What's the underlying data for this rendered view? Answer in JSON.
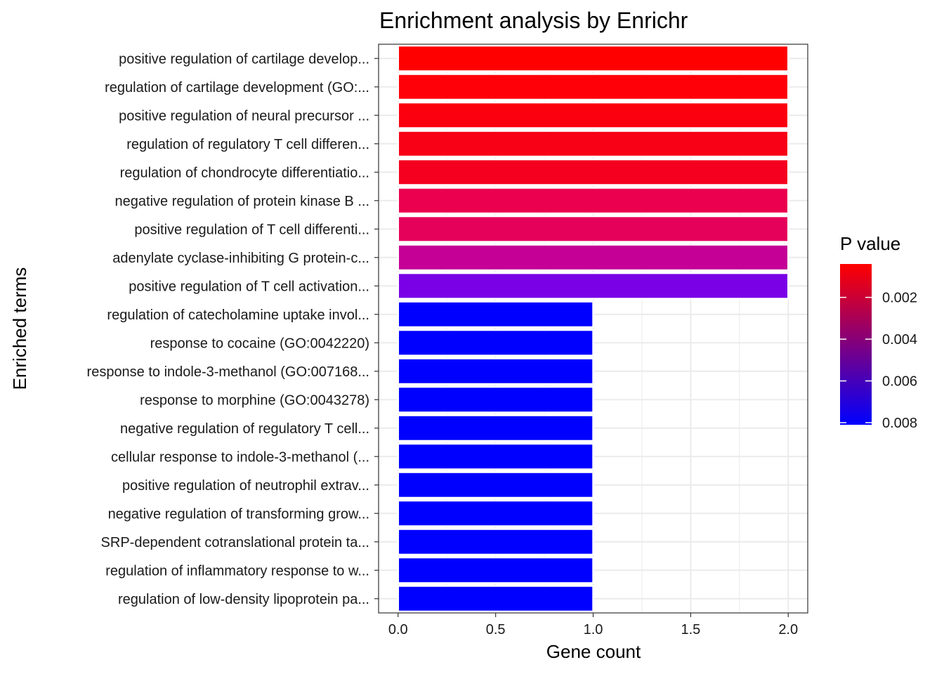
{
  "chart_data": {
    "type": "bar",
    "orientation": "horizontal",
    "title": "Enrichment analysis by Enrichr",
    "xlabel": "Gene count",
    "ylabel": "Enriched terms",
    "xlim": [
      -0.1,
      2.1
    ],
    "xticks": [
      0.0,
      0.5,
      1.0,
      1.5,
      2.0
    ],
    "xtick_labels": [
      "0.0",
      "0.5",
      "1.0",
      "1.5",
      "2.0"
    ],
    "grid": true,
    "legend": {
      "title": "P value",
      "position": "right",
      "type": "colorbar",
      "low_color": "#FF0000",
      "high_color": "#0000FF",
      "range": [
        0.0004,
        0.0081
      ],
      "ticks": [
        0.002,
        0.004,
        0.006,
        0.008
      ],
      "tick_labels": [
        "0.002",
        "0.004",
        "0.006",
        "0.008"
      ]
    },
    "categories": [
      "positive regulation of cartilage develop...",
      "regulation of cartilage development (GO:...",
      "positive regulation of neural precursor ...",
      "regulation of regulatory T cell differen...",
      "regulation of chondrocyte differentiatio...",
      "negative regulation of protein kinase B ...",
      "positive regulation of T cell differenti...",
      "adenylate cyclase-inhibiting G protein-c...",
      "positive regulation of T cell activation...",
      "regulation of catecholamine uptake invol...",
      "response to cocaine (GO:0042220)",
      "response to indole-3-methanol (GO:007168...",
      "response to morphine (GO:0043278)",
      "negative regulation of regulatory T cell...",
      "cellular response to indole-3-methanol (...",
      "positive regulation of neutrophil extrav...",
      "negative regulation of transforming grow...",
      "SRP-dependent cotranslational protein ta...",
      "regulation of inflammatory response to w...",
      "regulation of low-density lipoprotein pa..."
    ],
    "values": [
      2,
      2,
      2,
      2,
      2,
      2,
      2,
      2,
      2,
      1,
      1,
      1,
      1,
      1,
      1,
      1,
      1,
      1,
      1,
      1
    ],
    "p_values": [
      0.0004,
      0.0008,
      0.001,
      0.0012,
      0.0015,
      0.0025,
      0.0028,
      0.005,
      0.0073,
      0.0081,
      0.0081,
      0.0081,
      0.0081,
      0.0081,
      0.0081,
      0.0081,
      0.0081,
      0.0081,
      0.0081,
      0.0081
    ],
    "bar_colors": [
      "#FF0000",
      "#FF0009",
      "#FB000E",
      "#F80015",
      "#F5001E",
      "#EB0050",
      "#E5005A",
      "#C40096",
      "#7A00E6",
      "#0000FF",
      "#0000FF",
      "#0000FF",
      "#0000FF",
      "#0000FF",
      "#0000FF",
      "#0000FF",
      "#0000FF",
      "#0000FF",
      "#0000FF",
      "#0000FF"
    ]
  }
}
